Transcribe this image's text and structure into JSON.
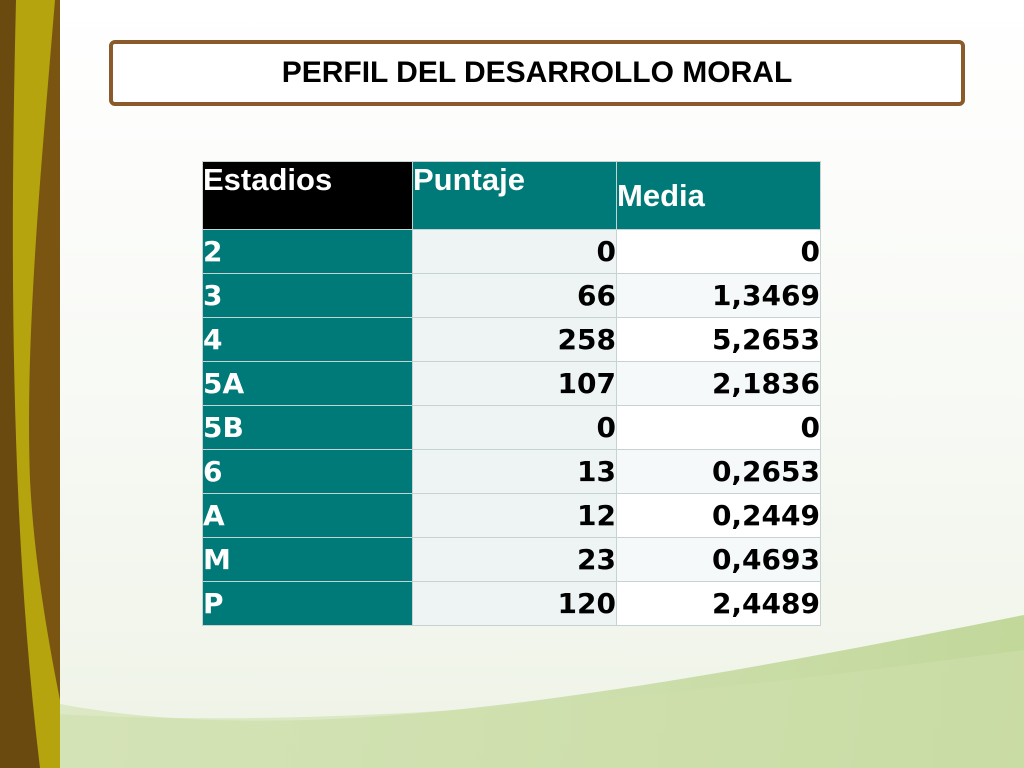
{
  "slide": {
    "title": "PERFIL DEL DESARROLLO MORAL"
  },
  "table": {
    "headers": [
      "Estadios",
      "Puntaje",
      "Media"
    ],
    "rows": [
      {
        "stage": "2",
        "score": "0",
        "mean": "0"
      },
      {
        "stage": "3",
        "score": "66",
        "mean": "1,3469"
      },
      {
        "stage": "4",
        "score": "258",
        "mean": "5,2653"
      },
      {
        "stage": "5A",
        "score": "107",
        "mean": "2,1836"
      },
      {
        "stage": "5B",
        "score": "0",
        "mean": "0"
      },
      {
        "stage": "6",
        "score": "13",
        "mean": "0,2653"
      },
      {
        "stage": "A",
        "score": "12",
        "mean": "0,2449"
      },
      {
        "stage": "M",
        "score": "23",
        "mean": "0,4693"
      },
      {
        "stage": "P",
        "score": "120",
        "mean": "2,4489"
      }
    ]
  },
  "colors": {
    "header_dark": "#000000",
    "teal": "#007a78",
    "title_border": "#8a5a2b",
    "left_band_brown": "#7a5512",
    "left_band_olive": "#b5a40e",
    "bottom_green": "#c4d99a"
  }
}
